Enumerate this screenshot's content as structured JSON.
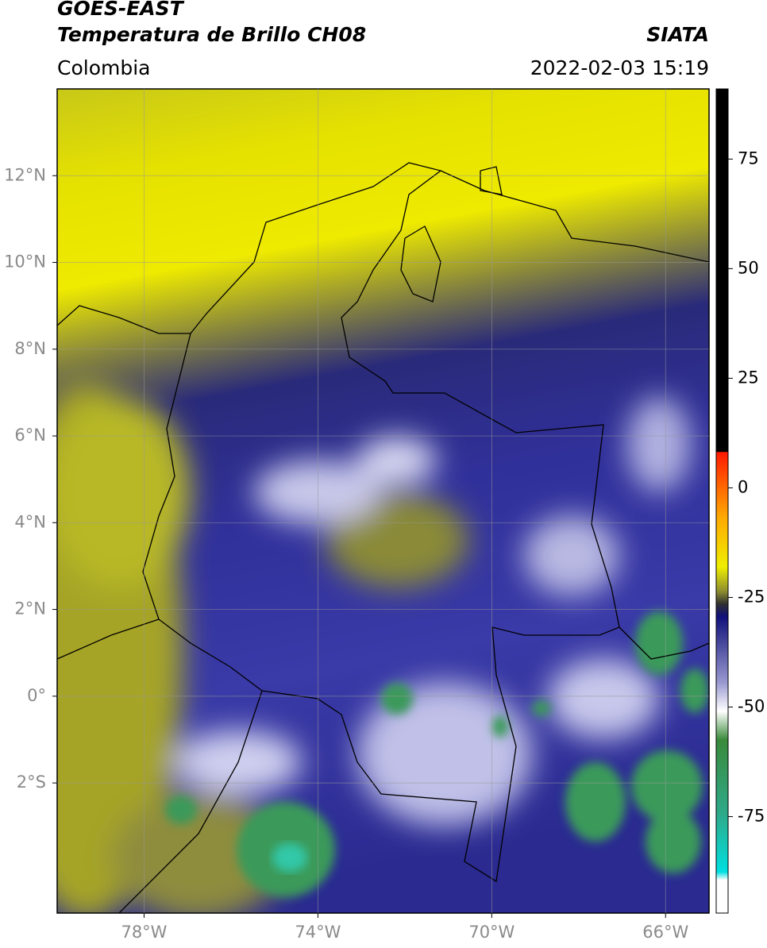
{
  "header": {
    "title": "GOES-EAST",
    "subtitle": "Temperatura de Brillo CH08",
    "source": "SIATA",
    "region": "Colombia",
    "datetime": "2022-02-03 15:19"
  },
  "chart_data": {
    "type": "map",
    "xlim": [
      -80,
      -65
    ],
    "ylim": [
      -5,
      14
    ],
    "xticks": [
      {
        "value": -78,
        "label": "78°W"
      },
      {
        "value": -74,
        "label": "74°W"
      },
      {
        "value": -70,
        "label": "70°W"
      },
      {
        "value": -66,
        "label": "66°W"
      }
    ],
    "yticks": [
      {
        "value": 12,
        "label": "12°N"
      },
      {
        "value": 10,
        "label": "10°N"
      },
      {
        "value": 8,
        "label": "8°N"
      },
      {
        "value": 6,
        "label": "6°N"
      },
      {
        "value": 4,
        "label": "4°N"
      },
      {
        "value": 2,
        "label": "2°N"
      },
      {
        "value": 0,
        "label": "0°"
      },
      {
        "value": -2,
        "label": "2°S"
      }
    ],
    "grid": true,
    "colorbar": {
      "clim": [
        -97,
        91
      ],
      "ticks": [
        75,
        50,
        25,
        0,
        -25,
        -50,
        -75
      ]
    }
  }
}
